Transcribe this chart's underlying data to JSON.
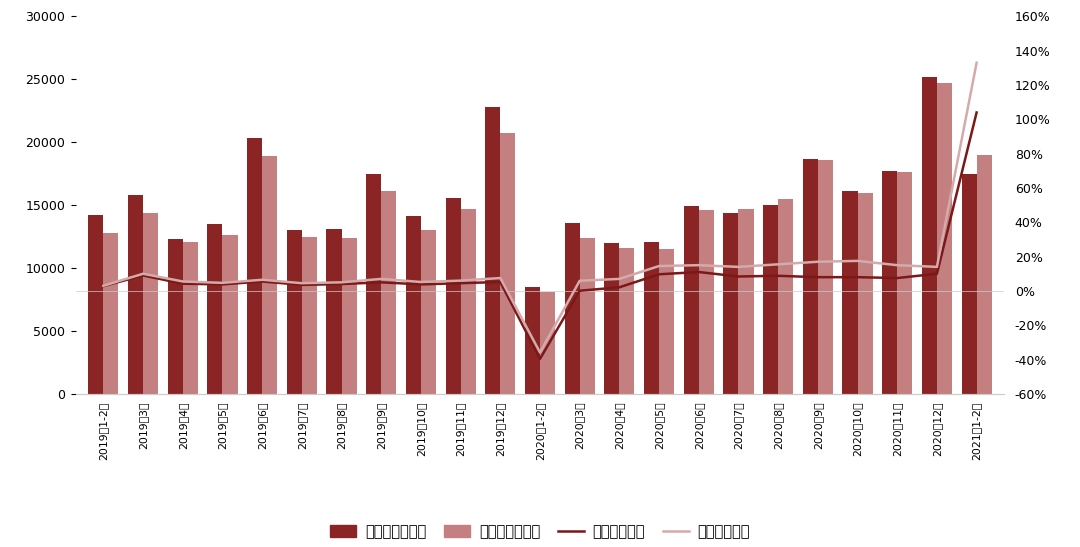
{
  "labels": [
    "2019年1-2月",
    "2019年3月",
    "2019年4月",
    "2019年5月",
    "2019年6月",
    "2019年7月",
    "2019年8月",
    "2019年9月",
    "2019年10月",
    "2019年11月",
    "2019年12月",
    "2020年1-2月",
    "2020年3月",
    "2020年4月",
    "2020年5月",
    "2020年6月",
    "2020年7月",
    "2020年8月",
    "2020年9月",
    "2020年10月",
    "2020年11月",
    "2020年12月",
    "2021年1-2月"
  ],
  "area": [
    14200,
    15800,
    12300,
    13500,
    20300,
    13000,
    13100,
    17500,
    14100,
    15600,
    22800,
    8500,
    13600,
    12000,
    12100,
    14900,
    14400,
    15000,
    18700,
    16100,
    17700,
    25200,
    17500
  ],
  "amount": [
    12800,
    14400,
    12100,
    12600,
    18900,
    12500,
    12400,
    16100,
    13000,
    14700,
    20700,
    8100,
    12400,
    11600,
    11500,
    14600,
    14700,
    15500,
    18600,
    16000,
    17600,
    24700,
    19000
  ],
  "area_yoy": [
    2.8,
    9.0,
    4.2,
    3.8,
    5.5,
    3.5,
    4.0,
    5.0,
    3.8,
    4.5,
    5.2,
    -39.6,
    0.1,
    2.1,
    9.7,
    11.0,
    8.4,
    8.8,
    8.0,
    8.0,
    7.5,
    10.0,
    104.0
  ],
  "amount_yoy": [
    3.0,
    10.0,
    5.5,
    4.7,
    6.5,
    4.5,
    5.0,
    7.0,
    5.2,
    6.0,
    7.5,
    -35.9,
    5.9,
    7.0,
    14.5,
    15.0,
    14.0,
    15.5,
    17.0,
    17.5,
    15.0,
    14.0,
    133.0
  ],
  "bar_color_area": "#8B2525",
  "bar_color_amount": "#C48080",
  "line_color_area": "#7B1818",
  "line_color_amount": "#D4AAAA",
  "background_color": "#FFFFFF",
  "ylim_left": [
    0,
    30000
  ],
  "ylim_right": [
    -60,
    160
  ],
  "yticks_left": [
    0,
    5000,
    10000,
    15000,
    20000,
    25000,
    30000
  ],
  "yticks_right": [
    -60,
    -40,
    -20,
    0,
    20,
    40,
    60,
    80,
    100,
    120,
    140,
    160
  ],
  "legend_labels": [
    "商品房销售面积",
    "商品房销售金额",
    "面积同比增速",
    "金额同比增速"
  ]
}
